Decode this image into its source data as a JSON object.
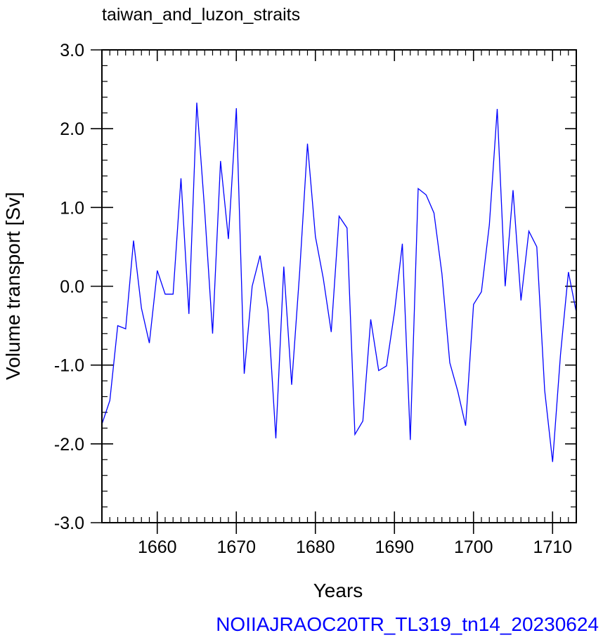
{
  "chart_data": {
    "type": "line",
    "title": "taiwan_and_luzon_straits",
    "xlabel": "Years",
    "ylabel": "Volume transport [Sv]",
    "footer": "NOIIAJRAOC20TR_TL319_tn14_20230624",
    "xlim": [
      1653,
      1713
    ],
    "ylim": [
      -3.0,
      3.0
    ],
    "x_ticks": [
      1660,
      1670,
      1680,
      1690,
      1700,
      1710
    ],
    "x_tick_labels": [
      "1660",
      "1670",
      "1680",
      "1690",
      "1700",
      "1710"
    ],
    "y_ticks": [
      -3,
      -2,
      -1,
      0,
      1,
      2,
      3
    ],
    "y_tick_labels": [
      "-3.0",
      "-2.0",
      "-1.0",
      "0.0",
      "1.0",
      "2.0",
      "3.0"
    ],
    "grid": false,
    "series": [
      {
        "color": "#0000ff",
        "x": [
          1653,
          1654,
          1655,
          1656,
          1657,
          1658,
          1659,
          1660,
          1661,
          1662,
          1663,
          1664,
          1665,
          1666,
          1667,
          1668,
          1669,
          1670,
          1671,
          1672,
          1673,
          1674,
          1675,
          1676,
          1677,
          1678,
          1679,
          1680,
          1681,
          1682,
          1683,
          1684,
          1685,
          1686,
          1687,
          1688,
          1689,
          1690,
          1691,
          1692,
          1693,
          1694,
          1695,
          1696,
          1697,
          1698,
          1699,
          1700,
          1701,
          1702,
          1703,
          1704,
          1705,
          1706,
          1707,
          1708,
          1709,
          1710,
          1711,
          1712,
          1713
        ],
        "y": [
          -1.75,
          -1.45,
          -0.5,
          -0.54,
          0.58,
          -0.28,
          -0.72,
          0.2,
          -0.1,
          -0.1,
          1.37,
          -0.35,
          2.33,
          0.95,
          -0.6,
          1.59,
          0.6,
          2.26,
          -1.11,
          0.0,
          0.39,
          -0.3,
          -1.93,
          0.25,
          -1.25,
          0.17,
          1.81,
          0.63,
          0.1,
          -0.58,
          0.89,
          0.74,
          -1.88,
          -1.71,
          -0.42,
          -1.07,
          -1.01,
          -0.33,
          0.54,
          -1.95,
          1.24,
          1.16,
          0.93,
          0.16,
          -0.97,
          -1.33,
          -1.77,
          -0.23,
          -0.07,
          0.78,
          2.25,
          0.0,
          1.22,
          -0.18,
          0.7,
          0.5,
          -1.32,
          -2.23,
          -0.87,
          0.18,
          -0.33
        ]
      }
    ]
  }
}
